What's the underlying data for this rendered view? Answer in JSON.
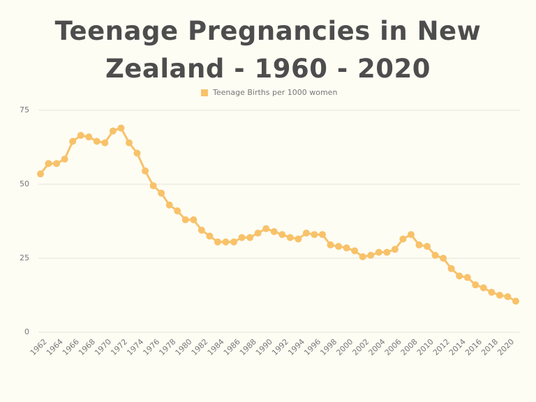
{
  "chart_data": {
    "type": "line",
    "title": "Teenage Pregnancies in New Zealand - 1960 - 2020",
    "categories": [
      null,
      "1962",
      null,
      "1964",
      null,
      "1966",
      null,
      "1968",
      null,
      "1970",
      null,
      "1972",
      null,
      "1974",
      null,
      "1976",
      null,
      "1978",
      null,
      "1980",
      null,
      "1982",
      null,
      "1984",
      null,
      "1986",
      null,
      "1988",
      null,
      "1990",
      null,
      "1992",
      null,
      "1994",
      null,
      "1996",
      null,
      "1998",
      null,
      "2000",
      null,
      "2002",
      null,
      "2004",
      null,
      "2006",
      null,
      "2008",
      null,
      "2010",
      null,
      "2012",
      null,
      "2014",
      null,
      "2016",
      null,
      "2018",
      null,
      "2020"
    ],
    "series": [
      {
        "name": "Teenage Births per 1000 women",
        "color": "#f8c26a",
        "values": [
          53.5,
          57,
          57,
          58.5,
          64.5,
          66.5,
          66,
          64.5,
          64,
          68,
          69,
          64,
          60.5,
          54.5,
          49.5,
          47,
          43,
          41,
          38,
          38,
          34.5,
          32.5,
          30.5,
          30.5,
          30.5,
          32,
          32,
          33.5,
          35,
          34,
          33,
          32,
          31.5,
          33.5,
          33,
          33,
          29.5,
          29,
          28.5,
          27.5,
          25.5,
          26,
          27,
          27,
          28,
          31.5,
          33,
          29.5,
          29,
          26,
          25,
          21.5,
          19,
          18.5,
          16,
          15,
          13.5,
          12.5,
          12,
          10.5
        ]
      }
    ],
    "ylim": [
      0,
      75
    ],
    "yticks": [
      0,
      25,
      50,
      75
    ],
    "grid": true,
    "legend": "top"
  }
}
